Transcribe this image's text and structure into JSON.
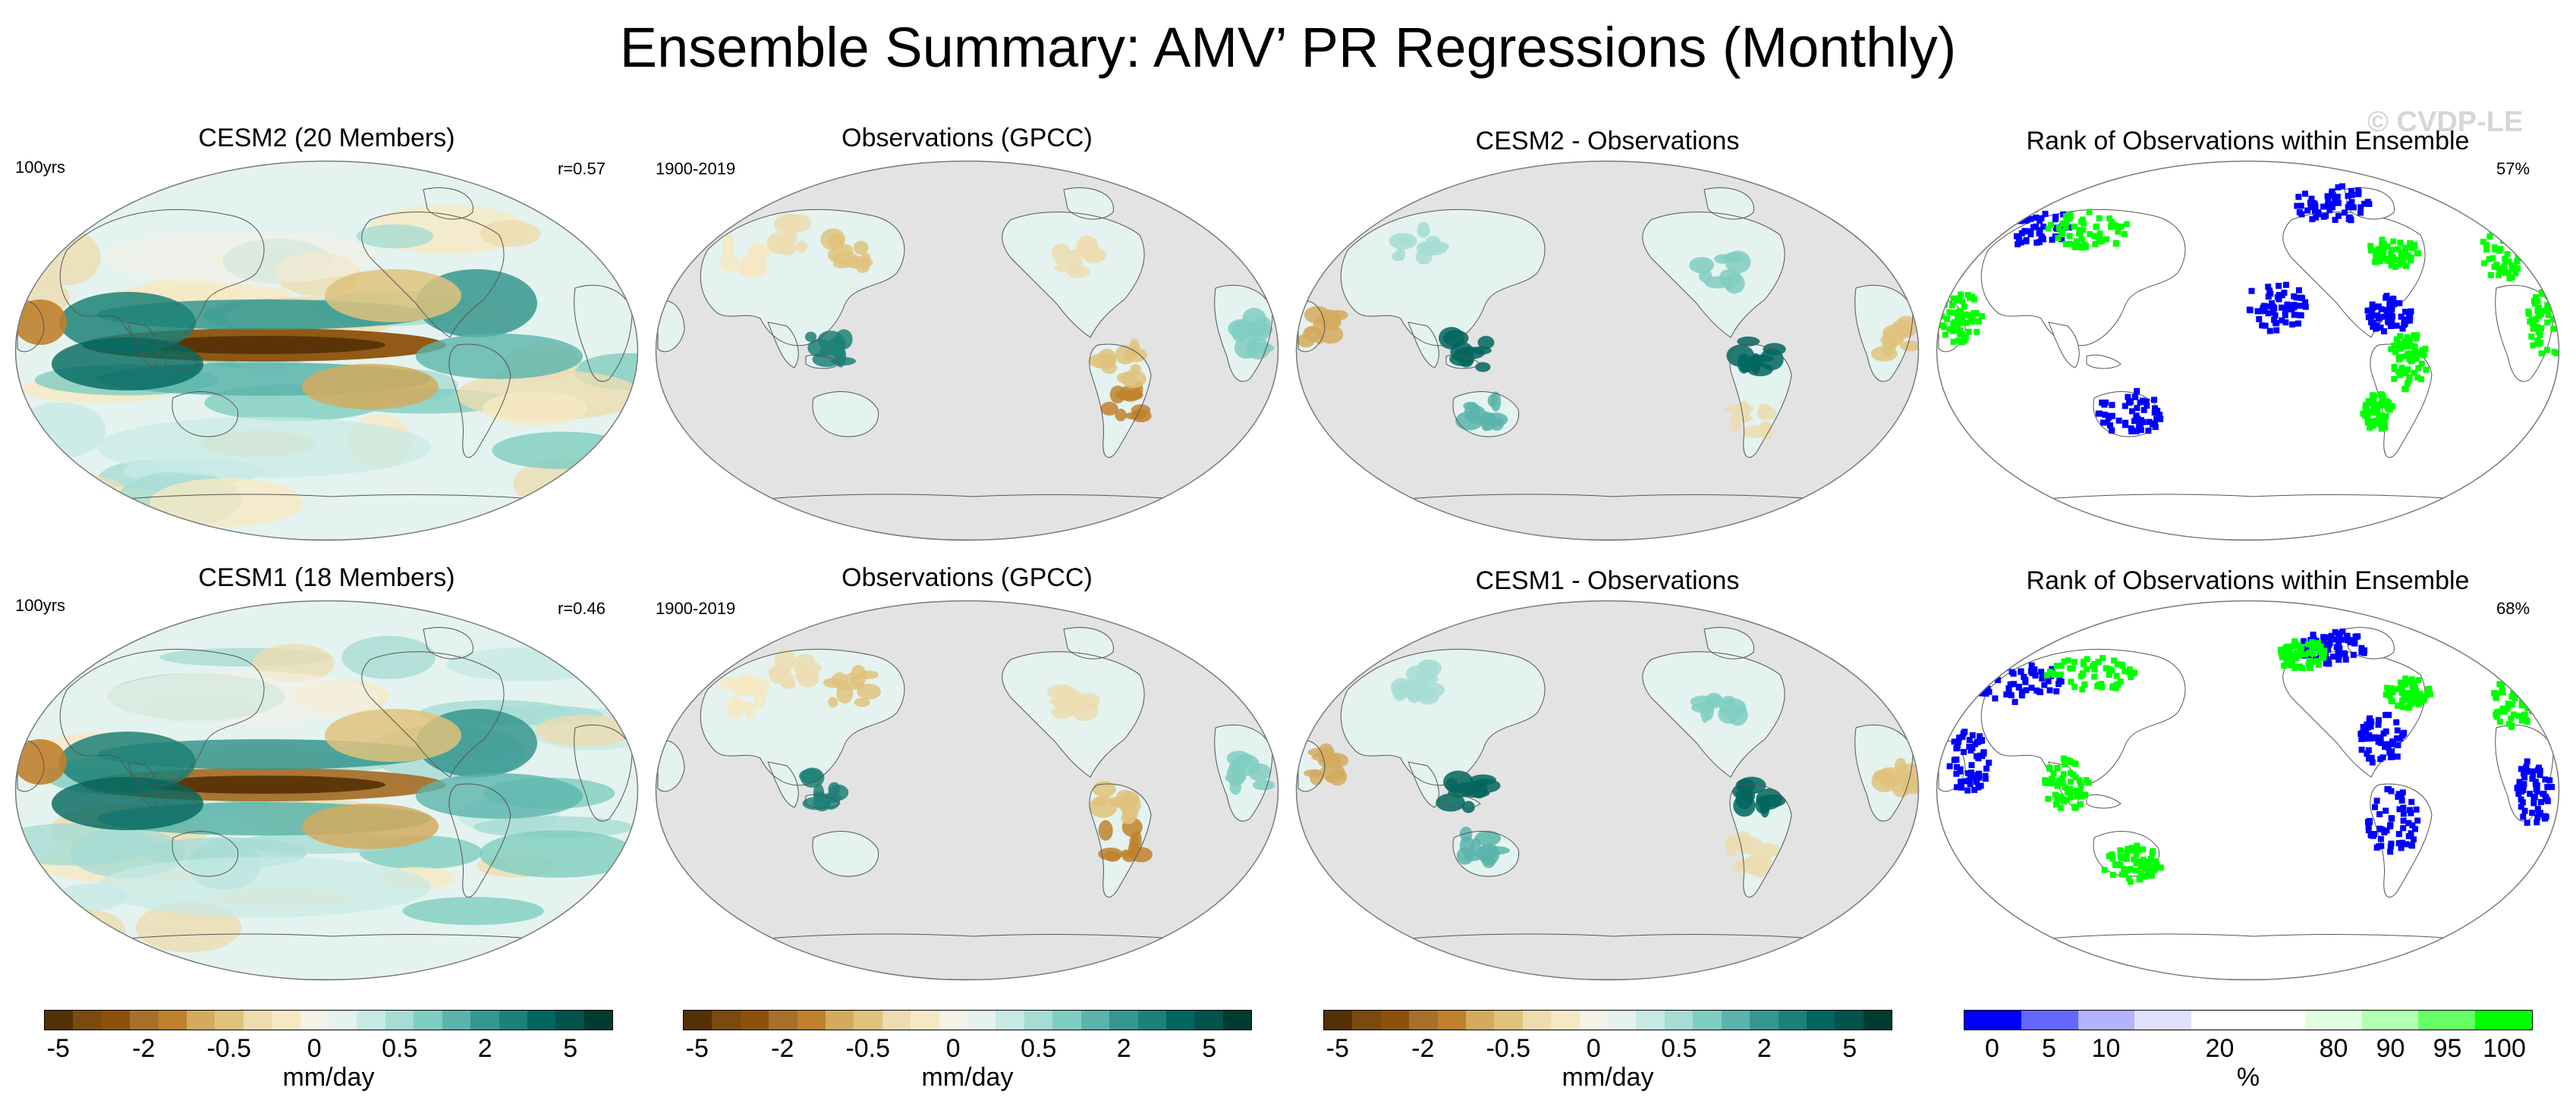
{
  "title": "Ensemble Summary: AMV’ PR Regressions (Monthly)",
  "watermark": "© CVDP-LE",
  "rows": [
    {
      "panels": [
        {
          "title": "CESM2 (20 Members)",
          "left_label": "100yrs",
          "right_label": "r=0.57",
          "kind": "model"
        },
        {
          "title": "Observations (GPCC)",
          "left_label": "1900-2019",
          "right_label": "",
          "kind": "obs"
        },
        {
          "title": "CESM2 - Observations",
          "left_label": "",
          "right_label": "",
          "kind": "diff"
        },
        {
          "title": "Rank of Observations within Ensemble",
          "left_label": "",
          "right_label": "57%",
          "kind": "rank"
        }
      ]
    },
    {
      "panels": [
        {
          "title": "CESM1 (18 Members)",
          "left_label": "100yrs",
          "right_label": "r=0.46",
          "kind": "model"
        },
        {
          "title": "Observations (GPCC)",
          "left_label": "1900-2019",
          "right_label": "",
          "kind": "obs"
        },
        {
          "title": "CESM1 - Observations",
          "left_label": "",
          "right_label": "",
          "kind": "diff"
        },
        {
          "title": "Rank of Observations within Ensemble",
          "left_label": "",
          "right_label": "68%",
          "kind": "rank"
        }
      ]
    }
  ],
  "colorbars": [
    {
      "unit": "mm/day",
      "ticks": [
        "-5",
        "-2",
        "-0.5",
        "0",
        "0.5",
        "2",
        "5"
      ],
      "colors": [
        "#543005",
        "#7a4a0e",
        "#8c510a",
        "#a8702a",
        "#bf812d",
        "#d3aa5e",
        "#dfc27d",
        "#ecdcb0",
        "#f6e8c3",
        "#f5f2e6",
        "#e4f3ef",
        "#c7eae5",
        "#a6dcd3",
        "#80cdc1",
        "#5ab4ac",
        "#35978f",
        "#1d8177",
        "#01665e",
        "#01534b",
        "#003c30"
      ]
    },
    {
      "unit": "mm/day",
      "ticks": [
        "-5",
        "-2",
        "-0.5",
        "0",
        "0.5",
        "2",
        "5"
      ],
      "colors": [
        "#543005",
        "#7a4a0e",
        "#8c510a",
        "#a8702a",
        "#bf812d",
        "#d3aa5e",
        "#dfc27d",
        "#ecdcb0",
        "#f6e8c3",
        "#f5f2e6",
        "#e4f3ef",
        "#c7eae5",
        "#a6dcd3",
        "#80cdc1",
        "#5ab4ac",
        "#35978f",
        "#1d8177",
        "#01665e",
        "#01534b",
        "#003c30"
      ]
    },
    {
      "unit": "mm/day",
      "ticks": [
        "-5",
        "-2",
        "-0.5",
        "0",
        "0.5",
        "2",
        "5"
      ],
      "colors": [
        "#543005",
        "#7a4a0e",
        "#8c510a",
        "#a8702a",
        "#bf812d",
        "#d3aa5e",
        "#dfc27d",
        "#ecdcb0",
        "#f6e8c3",
        "#f5f2e6",
        "#e4f3ef",
        "#c7eae5",
        "#a6dcd3",
        "#80cdc1",
        "#5ab4ac",
        "#35978f",
        "#1d8177",
        "#01665e",
        "#01534b",
        "#003c30"
      ]
    },
    {
      "unit": "%",
      "ticks": [
        "0",
        "5",
        "10",
        "20",
        "80",
        "90",
        "95",
        "100"
      ],
      "colors": [
        "#0000ff",
        "#6666ff",
        "#b3b3ff",
        "#e0e0ff",
        "#ffffff",
        "#ffffff",
        "#e0ffe0",
        "#b3ffb3",
        "#66ff66",
        "#00ff00"
      ]
    }
  ],
  "palette": {
    "ocean_gray": "#e3e3e3",
    "coast": "#555555",
    "rank_low": "#0000ff",
    "rank_high": "#00ff00"
  }
}
